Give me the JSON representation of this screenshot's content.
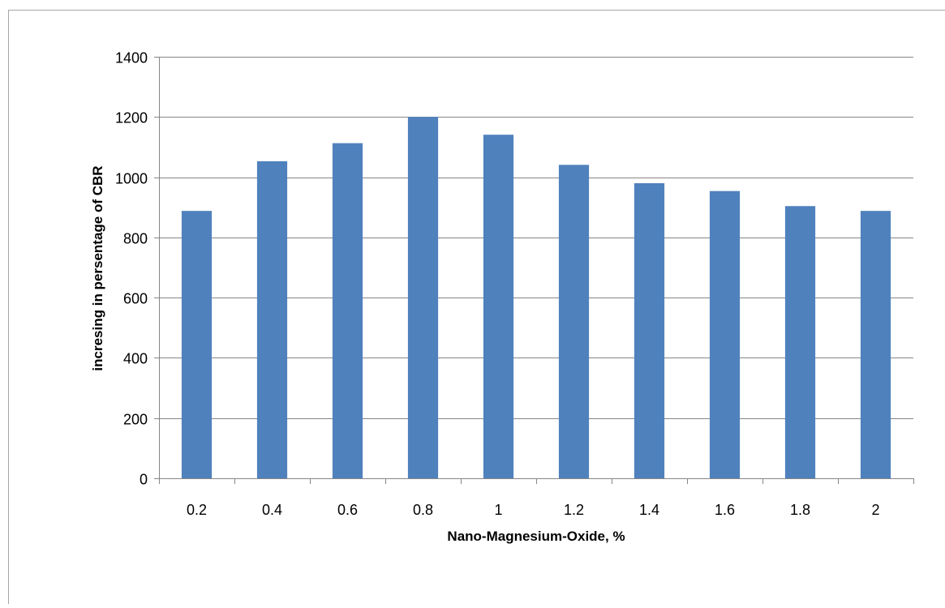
{
  "chart_data": {
    "type": "bar",
    "title": "",
    "xlabel": "Nano-Magnesium-Oxide, %",
    "ylabel": "incresing in persentage of CBR",
    "categories": [
      "0.2",
      "0.4",
      "0.6",
      "0.8",
      "1",
      "1.2",
      "1.4",
      "1.6",
      "1.8",
      "2"
    ],
    "values": [
      888,
      1053,
      1113,
      1200,
      1141,
      1041,
      980,
      954,
      904,
      888
    ],
    "ylim": [
      0,
      1400
    ],
    "yticks": [
      "0",
      "200",
      "400",
      "600",
      "800",
      "1000",
      "1200",
      "1400"
    ],
    "grid": true,
    "legend": "none",
    "colors": {
      "bar": "#4f81bd",
      "grid": "#868686",
      "axis": "#868686",
      "border": "#a6a6a6"
    }
  }
}
